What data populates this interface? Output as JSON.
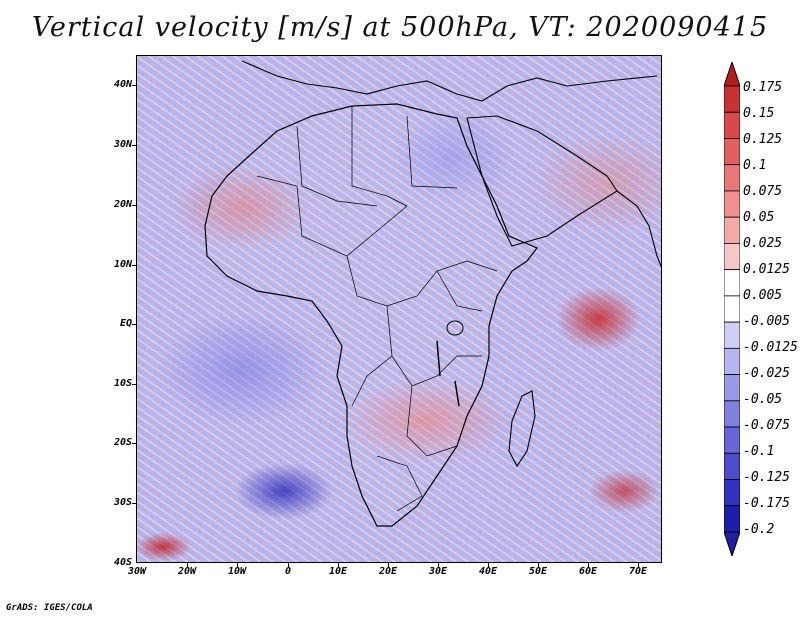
{
  "title": "Vertical velocity [m/s] at 500hPa, VT: 2020090415",
  "variable": "Vertical velocity",
  "units": "m/s",
  "level": "500hPa",
  "valid_time": "2020090415",
  "map": {
    "lat_labels": [
      "40N",
      "30N",
      "20N",
      "10N",
      "EQ",
      "10S",
      "20S",
      "30S",
      "40S"
    ],
    "lon_labels": [
      "30W",
      "20W",
      "10W",
      "0",
      "10E",
      "20E",
      "30E",
      "40E",
      "50E",
      "60E",
      "70E"
    ]
  },
  "colorbar": {
    "labels": [
      "0.175",
      "0.15",
      "0.125",
      "0.1",
      "0.075",
      "0.05",
      "0.025",
      "0.0125",
      "0.005",
      "-0.005",
      "-0.0125",
      "-0.025",
      "-0.05",
      "-0.075",
      "-0.1",
      "-0.125",
      "-0.175",
      "-0.2"
    ],
    "colors": [
      "#b21e1e",
      "#c83232",
      "#d84a4a",
      "#e06060",
      "#e87878",
      "#f09090",
      "#f4aaaa",
      "#f8c8c8",
      "#ffffff",
      "#ffffff",
      "#cfcff6",
      "#b4b4ef",
      "#9a9ae8",
      "#8080df",
      "#6666d6",
      "#4c4ccc",
      "#3232bf",
      "#1e1ea8",
      "#2020a0"
    ]
  },
  "credit": "GrADS: IGES/COLA"
}
